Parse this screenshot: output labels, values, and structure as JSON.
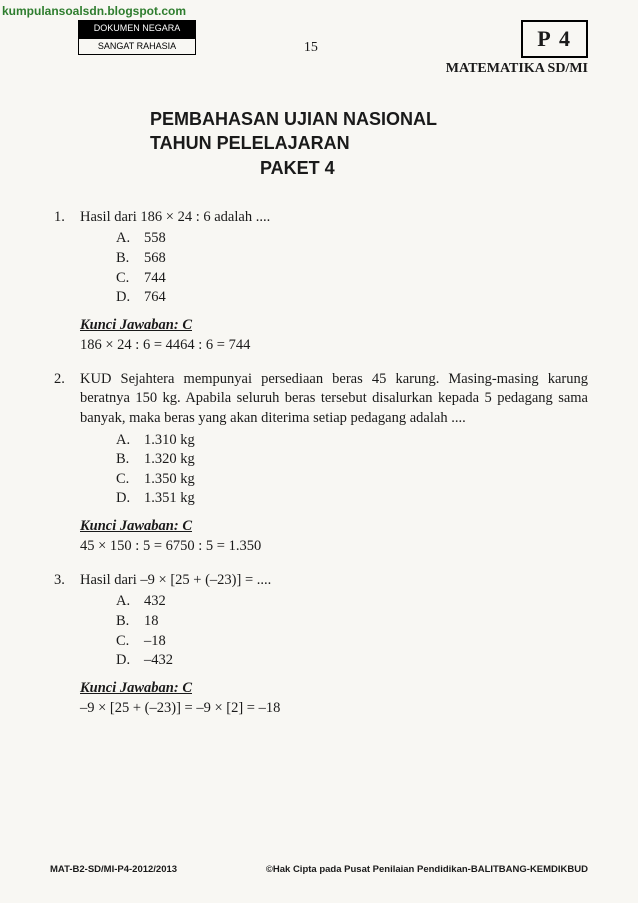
{
  "watermark": "kumpulansoalsdn.blogspot.com",
  "header": {
    "tag1": "DOKUMEN NEGARA",
    "tag2": "SANGAT RAHASIA",
    "page_number": "15",
    "packet": "P 4",
    "subject": "MATEMATIKA SD/MI"
  },
  "title": {
    "line1": "PEMBAHASAN UJIAN NASIONAL",
    "line2": "TAHUN PELELAJARAN",
    "line3": "PAKET 4"
  },
  "questions": [
    {
      "num": "1.",
      "stem": "Hasil dari 186 × 24 : 6 adalah ....",
      "options": [
        {
          "l": "A.",
          "t": "558"
        },
        {
          "l": "B.",
          "t": "568"
        },
        {
          "l": "C.",
          "t": "744"
        },
        {
          "l": "D.",
          "t": "764"
        }
      ],
      "answer_label": "Kunci Jawaban: C",
      "work": "186 × 24 : 6 = 4464 : 6 = 744"
    },
    {
      "num": "2.",
      "stem": "KUD Sejahtera mempunyai persediaan beras 45 karung. Masing-masing karung beratnya 150 kg. Apabila seluruh beras tersebut disalurkan kepada 5 pedagang sama banyak, maka beras yang akan diterima setiap pedagang adalah ....",
      "options": [
        {
          "l": "A.",
          "t": "1.310 kg"
        },
        {
          "l": "B.",
          "t": "1.320 kg"
        },
        {
          "l": "C.",
          "t": "1.350 kg"
        },
        {
          "l": "D.",
          "t": "1.351 kg"
        }
      ],
      "answer_label": "Kunci Jawaban: C",
      "work": "45 × 150 : 5 = 6750 : 5 = 1.350"
    },
    {
      "num": "3.",
      "stem": "Hasil dari –9 × [25 + (–23)] = ....",
      "options": [
        {
          "l": "A.",
          "t": "432"
        },
        {
          "l": "B.",
          "t": "18"
        },
        {
          "l": "C.",
          "t": "–18"
        },
        {
          "l": "D.",
          "t": "–432"
        }
      ],
      "answer_label": "Kunci Jawaban: C",
      "work": "–9 × [25 + (–23)]  = –9 × [2] = –18"
    }
  ],
  "footer": {
    "left": "MAT-B2-SD/MI-P4-2012/2013",
    "right": "©Hak Cipta pada Pusat Penilaian Pendidikan-BALITBANG-KEMDIKBUD"
  },
  "colors": {
    "background": "#f8f7f3",
    "text": "#1a1a1a",
    "watermark": "#2e7d2e"
  }
}
